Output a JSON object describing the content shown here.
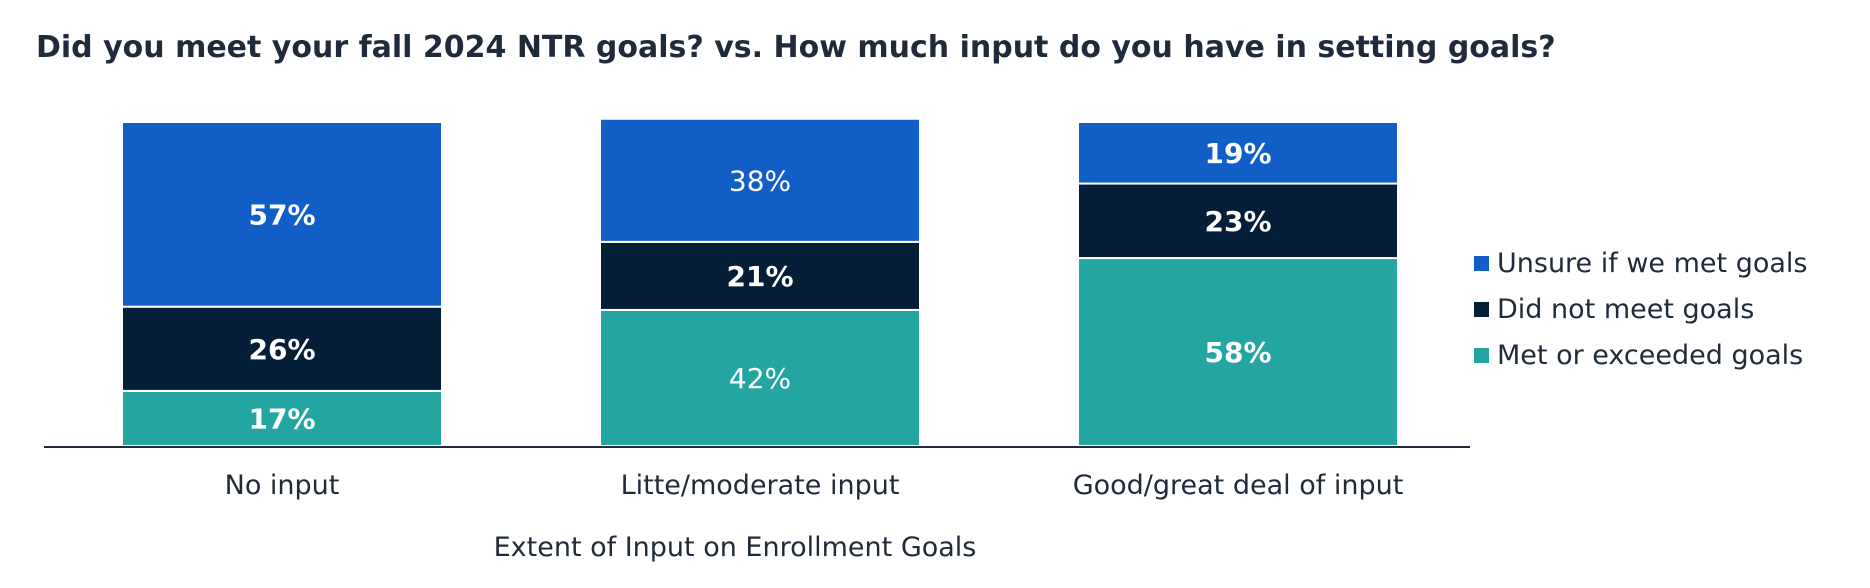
{
  "chart_data": {
    "type": "bar",
    "stacked": true,
    "title": "Did you meet your fall 2024 NTR goals? vs. How much input do you have in setting goals?",
    "xlabel": "Extent of Input on Enrollment Goals",
    "ylabel": "",
    "categories": [
      "No input",
      "Litte/moderate input",
      "Good/great deal of input"
    ],
    "series": [
      {
        "name": "Met or exceeded goals",
        "values": [
          17,
          42,
          58
        ],
        "labels": [
          "17%",
          "42%",
          "58%"
        ],
        "color": "#23a6a2",
        "label_bold": [
          true,
          false,
          true
        ]
      },
      {
        "name": "Did not meet goals",
        "values": [
          26,
          21,
          23
        ],
        "labels": [
          "26%",
          "21%",
          "23%"
        ],
        "color": "#041e37",
        "label_bold": [
          true,
          true,
          true
        ]
      },
      {
        "name": "Unsure if we met goals",
        "values": [
          57,
          38,
          19
        ],
        "labels": [
          "57%",
          "38%",
          "19%"
        ],
        "color": "#115fc6",
        "label_bold": [
          true,
          false,
          true
        ]
      }
    ],
    "legend_order": [
      "Unsure if we met goals",
      "Did not meet goals",
      "Met or exceeded goals"
    ],
    "legend_position": "right",
    "ylim": [
      0,
      100
    ],
    "grid": false
  }
}
